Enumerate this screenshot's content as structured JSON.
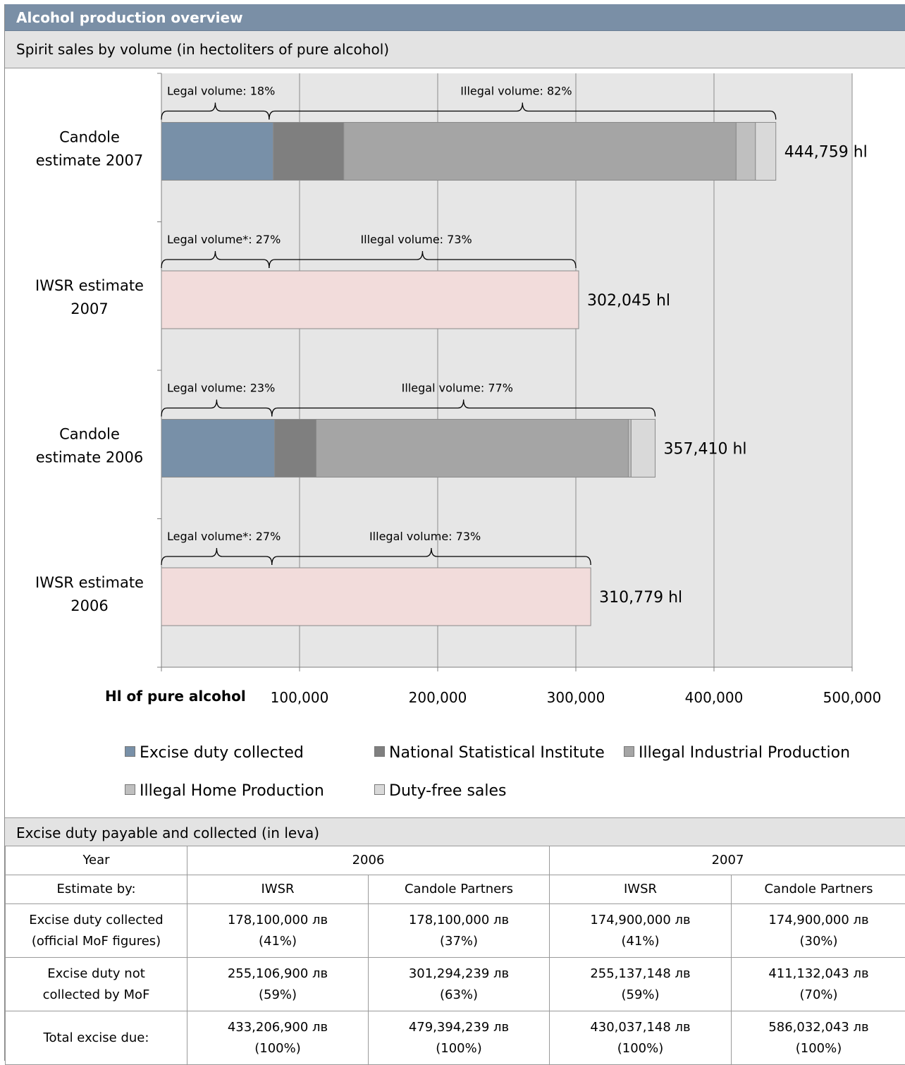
{
  "header": {
    "title": "Alcohol production overview"
  },
  "chart_section": {
    "title": "Spirit sales by volume (in hectoliters of pure alcohol)"
  },
  "chart_data": {
    "type": "bar",
    "orientation": "horizontal",
    "stacked": true,
    "xlabel": "Hl of pure alcohol",
    "xlim": [
      0,
      500000
    ],
    "x_ticks": [
      "100,000",
      "200,000",
      "300,000",
      "400,000",
      "500,000"
    ],
    "grid": true,
    "legend_position": "bottom",
    "categories": [
      "Candole estimate 2007",
      "IWSR estimate 2007",
      "Candole estimate 2006",
      "IWSR estimate 2006"
    ],
    "category_labels": [
      [
        "Candole",
        "estimate 2007"
      ],
      [
        "IWSR estimate",
        "2007"
      ],
      [
        "Candole",
        "estimate 2006"
      ],
      [
        "IWSR estimate",
        "2006"
      ]
    ],
    "series": [
      {
        "name": "Excise duty collected",
        "color": "#7890a8",
        "values": [
          81000,
          null,
          82000,
          null
        ]
      },
      {
        "name": "National Statistical Institute",
        "color": "#7f7f7f",
        "values": [
          51000,
          null,
          30000,
          null
        ]
      },
      {
        "name": "Illegal Industrial Production",
        "color": "#a5a5a5",
        "values": [
          284000,
          null,
          226000,
          null
        ]
      },
      {
        "name": "Illegal Home Production",
        "color": "#bfbfbf",
        "values": [
          14000,
          null,
          2000,
          null
        ]
      },
      {
        "name": "Duty-free sales",
        "color": "#d9d9d9",
        "values": [
          14759,
          null,
          17410,
          null
        ]
      },
      {
        "name": "",
        "color": "#f2dcdb",
        "values": [
          null,
          302045,
          null,
          310779
        ]
      }
    ],
    "totals": [
      "444,759 hl",
      "302,045 hl",
      "357,410 hl",
      "310,779 hl"
    ],
    "total_values": [
      444759,
      302045,
      357410,
      310779
    ],
    "brace_annotations": [
      {
        "row": 0,
        "legal": "Legal volume: 18%",
        "illegal": "Illegal volume: 82%",
        "split": 78000,
        "end": 444759
      },
      {
        "row": 1,
        "legal": "Legal volume*: 27%",
        "illegal": "Illegal volume: 73%",
        "split": 78000,
        "end": 300000
      },
      {
        "row": 2,
        "legal": "Legal volume: 23%",
        "illegal": "Illegal volume: 77%",
        "split": 80000,
        "end": 357410
      },
      {
        "row": 3,
        "legal": "Legal volume*: 27%",
        "illegal": "Illegal volume: 73%",
        "split": 80000,
        "end": 310779
      }
    ]
  },
  "legend": {
    "items": [
      {
        "label": "Excise duty collected",
        "color": "#7890a8"
      },
      {
        "label": "National Statistical Institute",
        "color": "#7f7f7f"
      },
      {
        "label": "Illegal Industrial Production",
        "color": "#a5a5a5"
      },
      {
        "label": "Illegal Home Production",
        "color": "#bfbfbf"
      },
      {
        "label": "Duty-free sales",
        "color": "#d9d9d9"
      }
    ]
  },
  "excise_section": {
    "title": "Excise duty payable and collected (in leva)"
  },
  "table": {
    "year_label": "Year",
    "year_2006": "2006",
    "year_2007": "2007",
    "estimate_label": "Estimate by:",
    "estimators": [
      "IWSR",
      "Candole Partners",
      "IWSR",
      "Candole Partners"
    ],
    "rows": [
      {
        "label1": "Excise duty collected",
        "label2": "(official MoF figures)",
        "cells": [
          {
            "amount": "178,100,000 лв",
            "pct": "(41%)"
          },
          {
            "amount": "178,100,000 лв",
            "pct": "(37%)"
          },
          {
            "amount": "174,900,000 лв",
            "pct": "(41%)"
          },
          {
            "amount": "174,900,000 лв",
            "pct": "(30%)"
          }
        ]
      },
      {
        "label1": "Excise duty not",
        "label2": "collected by MoF",
        "cells": [
          {
            "amount": "255,106,900 лв",
            "pct": "(59%)"
          },
          {
            "amount": "301,294,239 лв",
            "pct": "(63%)"
          },
          {
            "amount": "255,137,148 лв",
            "pct": "(59%)"
          },
          {
            "amount": "411,132,043 лв",
            "pct": "(70%)"
          }
        ]
      },
      {
        "label1": "Total excise due:",
        "label2": "",
        "cells": [
          {
            "amount": "433,206,900 лв",
            "pct": "(100%)"
          },
          {
            "amount": "479,394,239 лв",
            "pct": "(100%)"
          },
          {
            "amount": "430,037,148 лв",
            "pct": "(100%)"
          },
          {
            "amount": "586,032,043 лв",
            "pct": "(100%)"
          }
        ]
      }
    ]
  }
}
